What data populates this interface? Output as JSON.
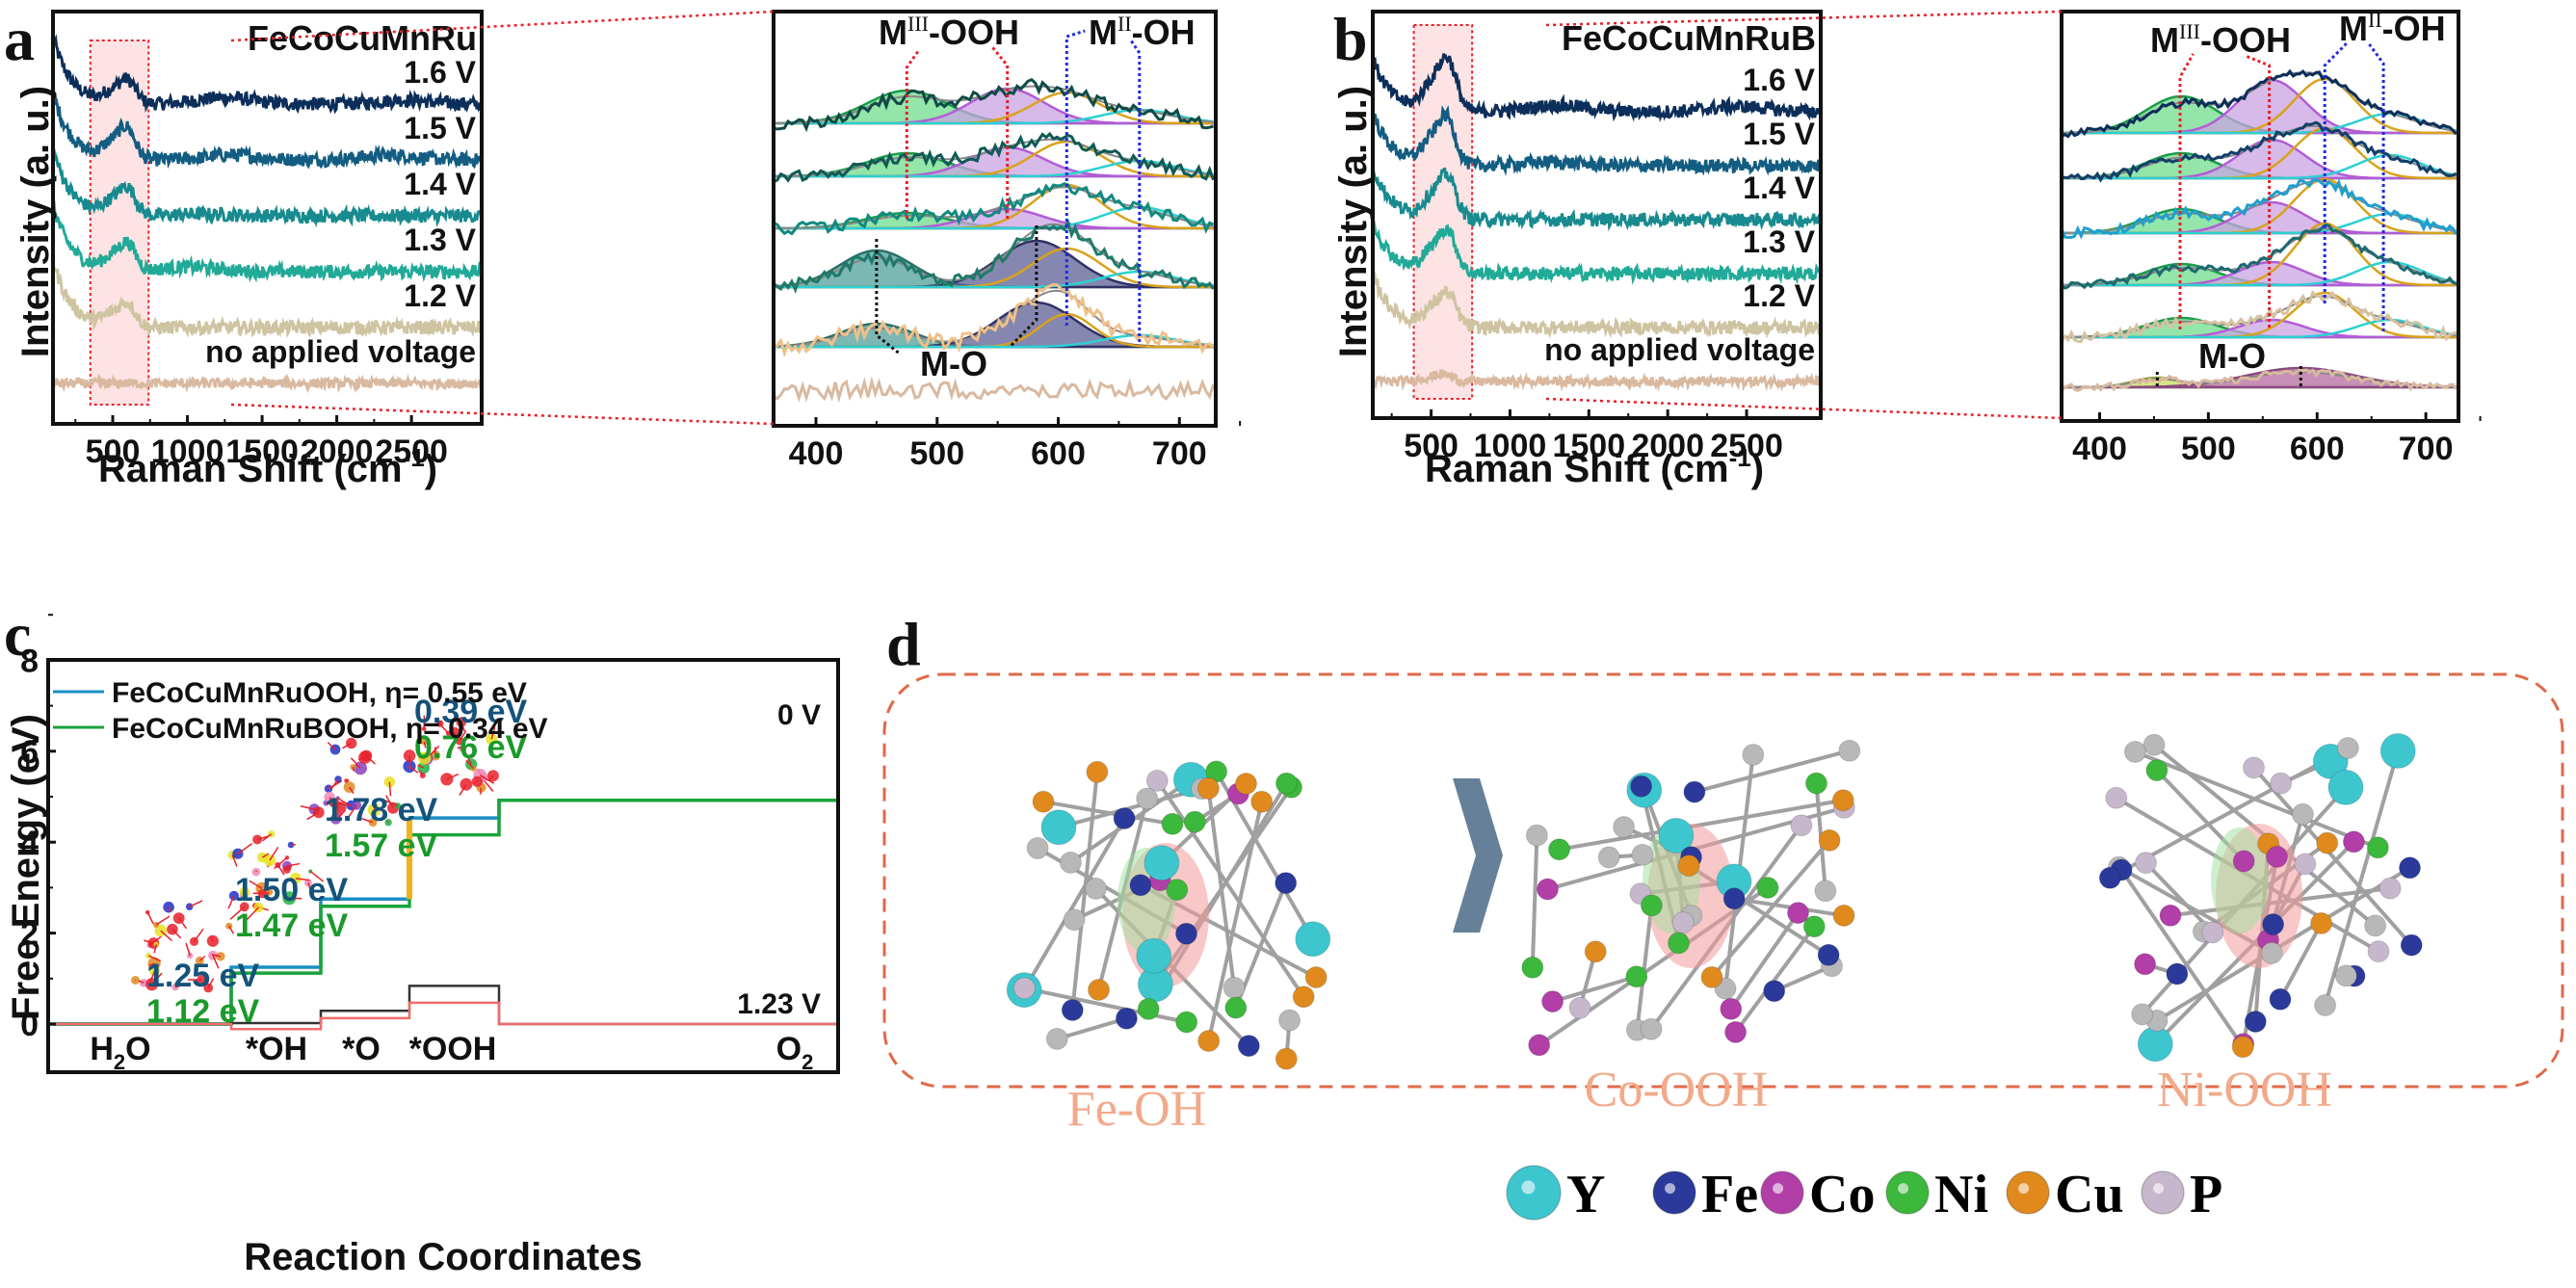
{
  "figure": {
    "panel_labels": [
      "a",
      "b",
      "c",
      "d"
    ]
  },
  "chart_data": [
    {
      "id": "a-main",
      "type": "line",
      "title": "FeCoCuMnRu",
      "xlabel": "Raman Shift (cm-1)",
      "xlabel_main": "Raman Shift (cm",
      "xlabel_sup": "-1",
      "xlabel_end": ")",
      "ylabel": "Intensity (a. u.)",
      "xlim": [
        100,
        2970
      ],
      "xticks": [
        500,
        1000,
        1500,
        2000,
        2500
      ],
      "highlight_region": [
        350,
        740
      ],
      "series": [
        {
          "name": "1.6 V",
          "color": "#0c2e5a",
          "peak": 600,
          "peak_height": 0.55,
          "baseline_offset": 5,
          "features": [
            [
              1250,
              0.2
            ],
            [
              2450,
              0.12
            ]
          ]
        },
        {
          "name": "1.5 V",
          "color": "#135d82",
          "peak": 595,
          "peak_height": 0.75,
          "baseline_offset": 4,
          "features": [
            [
              1300,
              0.15
            ],
            [
              2350,
              0.15
            ]
          ]
        },
        {
          "name": "1.4 V",
          "color": "#178b8f",
          "peak": 600,
          "peak_height": 0.65,
          "baseline_offset": 3,
          "features": [
            [
              1100,
              0.05
            ]
          ]
        },
        {
          "name": "1.3 V",
          "color": "#21aa98",
          "peak": 600,
          "peak_height": 0.65,
          "baseline_offset": 2,
          "features": [
            [
              1020,
              0.15
            ]
          ]
        },
        {
          "name": "1.2 V",
          "color": "#cfc4a2",
          "peak": 600,
          "peak_height": 0.55,
          "baseline_offset": 1,
          "features": []
        },
        {
          "name": "no applied voltage",
          "color": "#d9b9a0",
          "peak": 600,
          "peak_height": 0.0,
          "baseline_offset": 0,
          "features": []
        }
      ]
    },
    {
      "id": "a-zoom",
      "type": "line",
      "xlim": [
        365,
        730
      ],
      "xticks": [
        400,
        500,
        600,
        700
      ],
      "annotations": [
        {
          "text": "M",
          "sup": "III",
          "rest": "-OOH",
          "positions": [
            475,
            558
          ],
          "color": "#e8202a"
        },
        {
          "text": "M",
          "sup": "II",
          "rest": "-OH",
          "positions": [
            607,
            667
          ],
          "color": "#1f2be0"
        },
        {
          "text": "M-O",
          "positions": [
            450,
            582
          ],
          "color": "#111111"
        }
      ],
      "fit_components": [
        {
          "name": "MIII-OOH (475)",
          "center": 475,
          "color": "#6fdc8c"
        },
        {
          "name": "MIII-OOH (558)",
          "center": 558,
          "color": "#c9a3e3"
        },
        {
          "name": "MII-OH (607)",
          "center": 607,
          "color": "#d9a21b"
        },
        {
          "name": "MII-OH (667)",
          "center": 667,
          "color": "#2cd0d3"
        },
        {
          "name": "M-O (450)",
          "center": 450,
          "color": "#4f9f99"
        },
        {
          "name": "M-O (582)",
          "center": 582,
          "color": "#5e5f96"
        }
      ]
    },
    {
      "id": "b-main",
      "type": "line",
      "title": "FeCoCuMnRuB",
      "xlabel": "Raman Shift (cm-1)",
      "xlabel_main": "Raman Shift (cm",
      "xlabel_sup": "-1",
      "xlabel_end": ")",
      "ylabel": "Intensity (a. u.)",
      "xlim": [
        130,
        2970
      ],
      "xticks": [
        500,
        1000,
        1500,
        2000,
        2500
      ],
      "highlight_region": [
        390,
        760
      ],
      "series": [
        {
          "name": "1.6 V",
          "color": "#0c2e5a",
          "peak": 605,
          "peak_height": 1.1,
          "baseline_offset": 5,
          "features": [
            [
              1300,
              0.18
            ],
            [
              2450,
              0.15
            ]
          ]
        },
        {
          "name": "1.5 V",
          "color": "#135d82",
          "peak": 600,
          "peak_height": 1.0,
          "baseline_offset": 4,
          "features": [
            [
              1250,
              0.1
            ]
          ]
        },
        {
          "name": "1.4 V",
          "color": "#178b8f",
          "peak": 605,
          "peak_height": 0.9,
          "baseline_offset": 3,
          "features": []
        },
        {
          "name": "1.3 V",
          "color": "#21aa98",
          "peak": 605,
          "peak_height": 0.9,
          "baseline_offset": 2,
          "features": []
        },
        {
          "name": "1.2 V",
          "color": "#cfc4a2",
          "peak": 605,
          "peak_height": 0.7,
          "baseline_offset": 1,
          "features": []
        },
        {
          "name": "no applied voltage",
          "color": "#d9b9a0",
          "peak": 580,
          "peak_height": 0.15,
          "baseline_offset": 0,
          "features": []
        }
      ]
    },
    {
      "id": "b-zoom",
      "type": "line",
      "xlim": [
        365,
        730
      ],
      "xticks": [
        400,
        500,
        600,
        700
      ],
      "annotations": [
        {
          "text": "M",
          "sup": "III",
          "rest": "-OOH",
          "positions": [
            474,
            556
          ],
          "color": "#e8202a"
        },
        {
          "text": "M",
          "sup": "II",
          "rest": "-OH",
          "positions": [
            607,
            661
          ],
          "color": "#1f2be0"
        },
        {
          "text": "M-O",
          "positions": [
            453,
            585
          ],
          "color": "#111111"
        }
      ]
    },
    {
      "id": "c",
      "type": "line",
      "xlabel": "Reaction Coordinates",
      "ylabel": "Free Energy (eV)",
      "ylim": [
        -1,
        8
      ],
      "yticks": [
        0,
        2,
        4,
        6,
        8
      ],
      "categories": [
        "H2O",
        "*OH",
        "*O",
        "*OOH",
        "O2"
      ],
      "category_labels": [
        {
          "main": "H",
          "sub": "2",
          "end": "O"
        },
        {
          "main": "*OH",
          "sub": "",
          "end": ""
        },
        {
          "main": "*O",
          "sub": "",
          "end": ""
        },
        {
          "main": "*OOH",
          "sub": "",
          "end": ""
        },
        {
          "main": "O",
          "sub": "2",
          "end": ""
        }
      ],
      "series": [
        {
          "name": "FeCoCuMnRuOOH",
          "eta": "0.55 eV",
          "color": "#1a8fc4",
          "values": [
            0,
            1.25,
            2.75,
            4.53,
            4.92
          ],
          "step_labels": [
            "1.25 eV",
            "1.50 eV",
            "1.78 eV",
            "0.39 eV"
          ],
          "label_color": "#14527a"
        },
        {
          "name": "FeCoCuMnRuBOOH",
          "eta": "0.34 eV",
          "color": "#1aa33a",
          "values": [
            0,
            1.12,
            2.59,
            4.16,
            4.92
          ],
          "step_labels": [
            "1.12 eV",
            "1.47 eV",
            "1.57 eV",
            "0.76 eV"
          ],
          "label_color": "#1a9a2a"
        },
        {
          "name": "1.23 V (FeCoCuMnRuOOH)",
          "color": "#333333",
          "values": [
            0,
            0.02,
            0.29,
            0.84,
            0
          ]
        },
        {
          "name": "1.23 V (FeCoCuMnRuBOOH)",
          "color": "#f06d6d",
          "values": [
            0,
            -0.11,
            0.13,
            0.47,
            0
          ]
        }
      ],
      "legend": [
        {
          "label": "FeCoCuMnRuOOH, η= 0.55 eV",
          "color": "#1a8fc4"
        },
        {
          "label": "FeCoCuMnRuBOOH, η= 0.34 eV",
          "color": "#1aa33a"
        }
      ],
      "legend_position": "top-left",
      "potential_labels": {
        "top": "0 V",
        "bottom": "1.23 V"
      },
      "rate_limiting_step_color": "#f2b21c"
    }
  ],
  "panel_d": {
    "structures": [
      "Fe-OH",
      "Co-OOH",
      "Ni-OOH"
    ],
    "element_legend": [
      {
        "symbol": "Y",
        "color": "#3ec6cf"
      },
      {
        "symbol": "Fe",
        "color": "#2b3a9a"
      },
      {
        "symbol": "Co",
        "color": "#b23ea8"
      },
      {
        "symbol": "Ni",
        "color": "#3cb83c"
      },
      {
        "symbol": "Cu",
        "color": "#e08a1e"
      },
      {
        "symbol": "P",
        "color": "#c7b7cc"
      }
    ],
    "border_color": "#e06a4a"
  }
}
